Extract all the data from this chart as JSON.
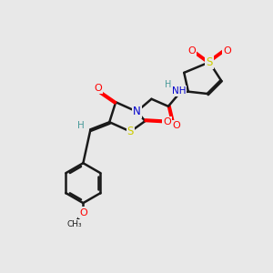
{
  "bg_color": "#e8e8e8",
  "bond_color": "#1a1a1a",
  "bond_width": 1.8,
  "atom_colors": {
    "N": "#0000cc",
    "O": "#ff0000",
    "S": "#cccc00",
    "H": "#4a9a9a"
  },
  "font": "DejaVu Sans"
}
